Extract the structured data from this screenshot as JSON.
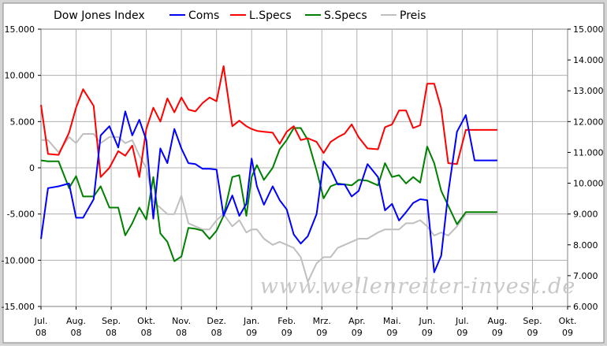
{
  "chart_data": {
    "type": "line",
    "title": "Dow Jones Index",
    "watermark": "www.wellenreiter-invest.de",
    "colors": {
      "Coms": "#0000ff",
      "L.Specs": "#ff0000",
      "S.Specs": "#008000",
      "Preis": "#bfbfbf"
    },
    "x_ticks": [
      {
        "label": "Jul.",
        "sub": "08"
      },
      {
        "label": "Aug.",
        "sub": "08"
      },
      {
        "label": "Sep.",
        "sub": "08"
      },
      {
        "label": "Okt.",
        "sub": "08"
      },
      {
        "label": "Nov.",
        "sub": "08"
      },
      {
        "label": "Dez.",
        "sub": "08"
      },
      {
        "label": "Jan.",
        "sub": "09"
      },
      {
        "label": "Feb.",
        "sub": "09"
      },
      {
        "label": "Mrz.",
        "sub": "09"
      },
      {
        "label": "Apr.",
        "sub": "09"
      },
      {
        "label": "Mai.",
        "sub": "09"
      },
      {
        "label": "Jun.",
        "sub": "09"
      },
      {
        "label": "Jul.",
        "sub": "09"
      },
      {
        "label": "Aug.",
        "sub": "09"
      },
      {
        "label": "Sep.",
        "sub": "09"
      },
      {
        "label": "Okt.",
        "sub": "09"
      }
    ],
    "y_left_ticks": [
      "15.000",
      "10.000",
      "5.000",
      "0",
      "-5.000",
      "-10.000",
      "-15.000"
    ],
    "y_left_values": [
      15000,
      10000,
      5000,
      0,
      -5000,
      -10000,
      -15000
    ],
    "ylim_left": [
      -15000,
      15000
    ],
    "y_right_ticks": [
      "15.000",
      "14.000",
      "13.000",
      "12.000",
      "11.000",
      "10.000",
      "9.000",
      "8.000",
      "7.000",
      "6.000"
    ],
    "y_right_values": [
      15000,
      14000,
      13000,
      12000,
      11000,
      10000,
      9000,
      8000,
      7000,
      6000
    ],
    "ylim_right": [
      6000,
      15000
    ],
    "x_range_months": [
      0,
      15
    ],
    "grid": true,
    "legend_position": "top",
    "series": [
      {
        "name": "Coms",
        "axis": "left",
        "x": [
          0,
          0.2,
          0.5,
          0.8,
          1.0,
          1.2,
          1.5,
          1.7,
          1.95,
          2.2,
          2.4,
          2.6,
          2.8,
          3.0,
          3.2,
          3.4,
          3.6,
          3.8,
          4.0,
          4.2,
          4.4,
          4.6,
          4.8,
          5.0,
          5.2,
          5.45,
          5.65,
          5.85,
          6.0,
          6.15,
          6.35,
          6.6,
          6.8,
          7.0,
          7.2,
          7.4,
          7.6,
          7.85,
          8.05,
          8.25,
          8.45,
          8.65,
          8.85,
          9.05,
          9.3,
          9.6,
          9.8,
          10.0,
          10.2,
          10.4,
          10.6,
          10.8,
          11.0,
          11.2,
          11.4,
          11.6,
          11.85,
          12.1,
          12.35,
          12.55,
          12.8,
          13.0
        ],
        "values": [
          -7700,
          -2200,
          -2000,
          -1700,
          -5400,
          -5400,
          -3400,
          3500,
          4500,
          2200,
          6100,
          3500,
          5200,
          3000,
          -5500,
          2100,
          500,
          4200,
          2100,
          500,
          400,
          -100,
          -100,
          -200,
          -5200,
          -3000,
          -5200,
          -3900,
          1000,
          -2000,
          -4000,
          -2000,
          -3500,
          -4500,
          -7200,
          -8200,
          -7400,
          -5000,
          700,
          -200,
          -1800,
          -1800,
          -3100,
          -2500,
          400,
          -1000,
          -4600,
          -3900,
          -5700,
          -4800,
          -3800,
          -3400,
          -3500,
          -11300,
          -9500,
          -2700,
          3900,
          5700,
          800,
          800,
          800,
          800
        ]
      },
      {
        "name": "L.Specs",
        "axis": "left",
        "x": [
          0,
          0.2,
          0.5,
          0.8,
          1.0,
          1.2,
          1.5,
          1.7,
          1.95,
          2.2,
          2.4,
          2.6,
          2.8,
          3.0,
          3.2,
          3.4,
          3.6,
          3.8,
          4.0,
          4.2,
          4.4,
          4.6,
          4.8,
          5.0,
          5.2,
          5.45,
          5.65,
          5.85,
          6.0,
          6.15,
          6.35,
          6.6,
          6.8,
          7.0,
          7.2,
          7.4,
          7.6,
          7.85,
          8.05,
          8.25,
          8.45,
          8.65,
          8.85,
          9.05,
          9.3,
          9.6,
          9.8,
          10.0,
          10.2,
          10.4,
          10.6,
          10.8,
          11.0,
          11.2,
          11.4,
          11.6,
          11.85,
          12.1,
          12.35,
          12.55,
          12.8,
          13.0
        ],
        "values": [
          6800,
          1500,
          1400,
          3800,
          6500,
          8500,
          6700,
          -1000,
          0,
          1800,
          1300,
          2400,
          -1000,
          4200,
          6500,
          5000,
          7500,
          6000,
          7600,
          6300,
          6100,
          7000,
          7600,
          7200,
          11000,
          4500,
          5100,
          4500,
          4200,
          4000,
          3900,
          3800,
          2600,
          3900,
          4500,
          3000,
          3200,
          2800,
          1600,
          2800,
          3300,
          3700,
          4700,
          3300,
          2100,
          2000,
          4400,
          4700,
          6200,
          6200,
          4300,
          4600,
          9100,
          9100,
          6400,
          500,
          400,
          4100,
          4100,
          4100,
          4100,
          4100
        ]
      },
      {
        "name": "S.Specs",
        "axis": "left",
        "x": [
          0,
          0.2,
          0.5,
          0.8,
          1.0,
          1.2,
          1.5,
          1.7,
          1.95,
          2.2,
          2.4,
          2.6,
          2.8,
          3.0,
          3.2,
          3.4,
          3.6,
          3.8,
          4.0,
          4.2,
          4.4,
          4.6,
          4.8,
          5.0,
          5.2,
          5.45,
          5.65,
          5.85,
          6.0,
          6.15,
          6.35,
          6.6,
          6.8,
          7.0,
          7.2,
          7.4,
          7.6,
          7.85,
          8.05,
          8.25,
          8.45,
          8.65,
          8.85,
          9.05,
          9.3,
          9.6,
          9.8,
          10.0,
          10.2,
          10.4,
          10.6,
          10.8,
          11.0,
          11.2,
          11.4,
          11.6,
          11.85,
          12.1,
          12.35,
          12.55,
          12.8,
          13.0
        ],
        "values": [
          800,
          700,
          700,
          -2200,
          -900,
          -3100,
          -3100,
          -2000,
          -4300,
          -4300,
          -7300,
          -6000,
          -4300,
          -5600,
          -1000,
          -7100,
          -8000,
          -10100,
          -9600,
          -6500,
          -6600,
          -6800,
          -7700,
          -6800,
          -5200,
          -1000,
          -800,
          -5200,
          -1000,
          300,
          -1300,
          0,
          2000,
          3000,
          4300,
          4300,
          3000,
          -300,
          -3300,
          -2000,
          -1700,
          -1800,
          -1900,
          -1300,
          -1400,
          -1900,
          500,
          -1000,
          -800,
          -1700,
          -1000,
          -1600,
          2300,
          500,
          -2500,
          -4100,
          -6100,
          -4800,
          -4800,
          -4800,
          -4800,
          -4800
        ]
      },
      {
        "name": "Preis",
        "axis": "right",
        "x": [
          0,
          0.2,
          0.5,
          0.8,
          1.0,
          1.2,
          1.5,
          1.7,
          1.95,
          2.2,
          2.4,
          2.6,
          2.8,
          3.0,
          3.2,
          3.4,
          3.6,
          3.8,
          4.0,
          4.2,
          4.4,
          4.6,
          4.8,
          5.0,
          5.2,
          5.45,
          5.65,
          5.85,
          6.0,
          6.15,
          6.35,
          6.6,
          6.8,
          7.0,
          7.2,
          7.4,
          7.6,
          7.85,
          8.05,
          8.25,
          8.45,
          8.65,
          8.85,
          9.05,
          9.3,
          9.6,
          9.8,
          10.0,
          10.2,
          10.4,
          10.6,
          10.8,
          11.0,
          11.2,
          11.4,
          11.6,
          11.85,
          12.1,
          12.35,
          12.55,
          12.8,
          13.0
        ],
        "values": [
          11400,
          11400,
          11000,
          11500,
          11300,
          11600,
          11600,
          11300,
          11500,
          11500,
          11300,
          11400,
          10900,
          10500,
          9400,
          9200,
          9000,
          9000,
          9600,
          8700,
          8600,
          8500,
          8500,
          8800,
          9000,
          8600,
          8800,
          8400,
          8500,
          8500,
          8200,
          8000,
          8100,
          8000,
          7900,
          7600,
          6800,
          7400,
          7600,
          7600,
          7900,
          8000,
          8100,
          8200,
          8200,
          8400,
          8500,
          8500,
          8500,
          8700,
          8700,
          8800,
          8600,
          8300,
          8400,
          8300,
          8600,
          9000,
          9000,
          9000,
          9000,
          9000
        ]
      }
    ]
  }
}
